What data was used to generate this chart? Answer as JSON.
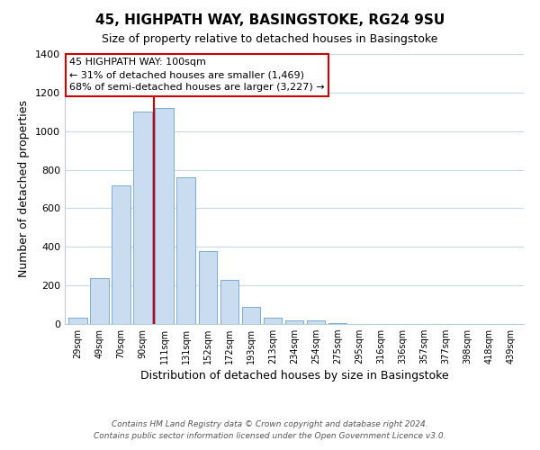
{
  "title": "45, HIGHPATH WAY, BASINGSTOKE, RG24 9SU",
  "subtitle": "Size of property relative to detached houses in Basingstoke",
  "xlabel": "Distribution of detached houses by size in Basingstoke",
  "ylabel": "Number of detached properties",
  "categories": [
    "29sqm",
    "49sqm",
    "70sqm",
    "90sqm",
    "111sqm",
    "131sqm",
    "152sqm",
    "172sqm",
    "193sqm",
    "213sqm",
    "234sqm",
    "254sqm",
    "275sqm",
    "295sqm",
    "316sqm",
    "336sqm",
    "357sqm",
    "377sqm",
    "398sqm",
    "418sqm",
    "439sqm"
  ],
  "values": [
    35,
    240,
    720,
    1100,
    1120,
    760,
    380,
    230,
    90,
    35,
    20,
    20,
    5,
    0,
    0,
    0,
    0,
    0,
    0,
    0,
    0
  ],
  "bar_color": "#c9dcf0",
  "bar_edge_color": "#7aacd4",
  "marker_line_color": "#cc0000",
  "annotation_text": "45 HIGHPATH WAY: 100sqm\n← 31% of detached houses are smaller (1,469)\n68% of semi-detached houses are larger (3,227) →",
  "annotation_box_color": "#ffffff",
  "annotation_box_edge": "#cc0000",
  "ylim": [
    0,
    1400
  ],
  "yticks": [
    0,
    200,
    400,
    600,
    800,
    1000,
    1200,
    1400
  ],
  "footer_line1": "Contains HM Land Registry data © Crown copyright and database right 2024.",
  "footer_line2": "Contains public sector information licensed under the Open Government Licence v3.0.",
  "bg_color": "#ffffff",
  "grid_color": "#c8d8e8"
}
